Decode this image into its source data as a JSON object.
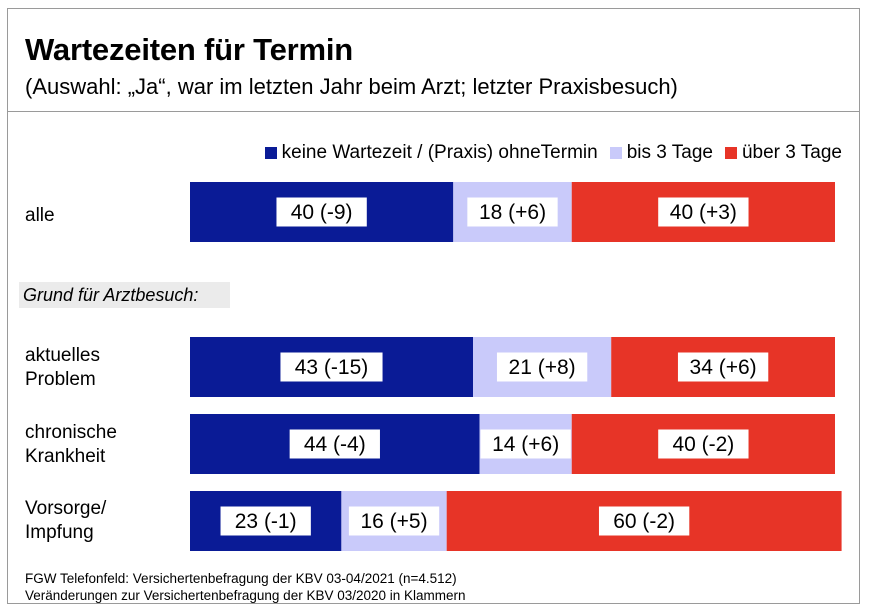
{
  "chart_data": {
    "type": "bar",
    "orientation": "horizontal",
    "stacked": true,
    "title": "Wartezeiten für Termin",
    "subtitle": "(Auswahl: „Ja“, war im letzten Jahr beim Arzt; letzter Praxisbesuch)",
    "categories": [
      "alle",
      "aktuelles\nProblem",
      "chronische\nKrankheit",
      "Vorsorge/\nImpfung"
    ],
    "section_label": "Grund für Arztbesuch:",
    "series": [
      {
        "name": "keine Wartezeit / (Praxis) ohneTermin",
        "color": "#0a1b96",
        "values": [
          40,
          43,
          44,
          23
        ],
        "labels": [
          "40 (-9)",
          "43 (-15)",
          "44 (-4)",
          "23 (-1)"
        ]
      },
      {
        "name": "bis 3 Tage",
        "color": "#c9cafa",
        "values": [
          18,
          21,
          14,
          16
        ],
        "labels": [
          "18 (+6)",
          "21 (+8)",
          "14 (+6)",
          "16 (+5)"
        ]
      },
      {
        "name": "über 3 Tage",
        "color": "#e73427",
        "values": [
          40,
          34,
          40,
          60
        ],
        "labels": [
          "40 (+3)",
          "34 (+6)",
          "40 (-2)",
          "60 (-2)"
        ]
      }
    ],
    "xlim": [
      0,
      98
    ],
    "legend_position": "top-right",
    "grid": false
  },
  "footer": {
    "line1": "FGW Telefonfeld: Versichertenbefragung der KBV 03-04/2021 (n=4.512)",
    "line2": "Veränderungen zur Versichertenbefragung der KBV 03/2020 in Klammern"
  }
}
